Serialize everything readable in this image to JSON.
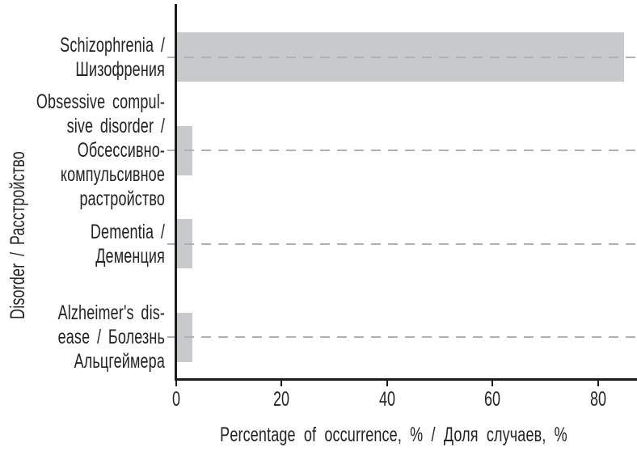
{
  "chart_data": {
    "type": "bar",
    "orientation": "horizontal",
    "title": "",
    "categories": [
      "Schizophrenia /\nШизофрения",
      "Obsessive compul-\nsive disorder /\nОбсессивно-\nкомпульсивное\nрастройство",
      "Dementia /\nДеменция",
      "Alzheimer's dis-\nease / Болезнь\nАльцгеймера"
    ],
    "values": [
      85,
      3,
      3,
      3
    ],
    "xlabel": "Percentage of occurrence, % / Доля случаев, %",
    "ylabel": "Disorder / Расстройство",
    "xticks": [
      0,
      20,
      40,
      60,
      80
    ],
    "xlim": [
      0,
      88
    ],
    "legend": "none",
    "grid": "dashed-horizontal-per-category",
    "colors": {
      "bar": "#c8c9cb",
      "gridline": "#aeb0b3",
      "axis": "#1b1b1d",
      "text": "#242224",
      "background": "#ffffff"
    }
  }
}
